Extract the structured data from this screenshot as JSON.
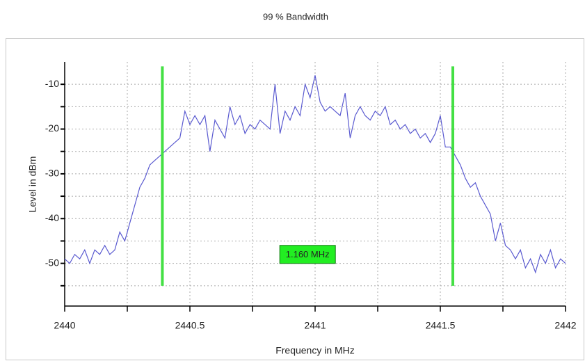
{
  "chart_data": {
    "type": "line",
    "title": "99 % Bandwidth",
    "x_label": "Frequency in MHz",
    "y_label": "Level in dBm",
    "xlim": [
      2440,
      2442
    ],
    "ylim": [
      -60,
      -5
    ],
    "xticks": [
      2440,
      2440.5,
      2441,
      2441.5,
      2442
    ],
    "x_minor_ticks": [
      2440.25,
      2440.75,
      2441.25,
      2441.75
    ],
    "yticks": [
      -10,
      -20,
      -30,
      -40,
      -50
    ],
    "y_minor_ticks": [
      -15,
      -25,
      -35,
      -45,
      -55
    ],
    "grid": true,
    "series": [
      {
        "color": "#5a5ad0",
        "x": [
          2440,
          2440.02,
          2440.04,
          2440.06,
          2440.08,
          2440.1,
          2440.12,
          2440.14,
          2440.16,
          2440.18,
          2440.2,
          2440.22,
          2440.24,
          2440.26,
          2440.28,
          2440.3,
          2440.32,
          2440.34,
          2440.36,
          2440.38,
          2440.4,
          2440.42,
          2440.44,
          2440.46,
          2440.48,
          2440.5,
          2440.52,
          2440.54,
          2440.56,
          2440.58,
          2440.6,
          2440.62,
          2440.64,
          2440.66,
          2440.68,
          2440.7,
          2440.72,
          2440.74,
          2440.76,
          2440.78,
          2440.8,
          2440.82,
          2440.84,
          2440.86,
          2440.88,
          2440.9,
          2440.92,
          2440.94,
          2440.96,
          2440.98,
          2441,
          2441.02,
          2441.04,
          2441.06,
          2441.08,
          2441.1,
          2441.12,
          2441.14,
          2441.16,
          2441.18,
          2441.2,
          2441.22,
          2441.24,
          2441.26,
          2441.28,
          2441.3,
          2441.32,
          2441.34,
          2441.36,
          2441.38,
          2441.4,
          2441.42,
          2441.44,
          2441.46,
          2441.48,
          2441.5,
          2441.52,
          2441.54,
          2441.56,
          2441.58,
          2441.6,
          2441.62,
          2441.64,
          2441.66,
          2441.68,
          2441.7,
          2441.72,
          2441.74,
          2441.76,
          2441.78,
          2441.8,
          2441.82,
          2441.84,
          2441.86,
          2441.88,
          2441.9,
          2441.92,
          2441.94,
          2441.96,
          2441.98,
          2442
        ],
        "values": [
          -49,
          -50,
          -48,
          -49,
          -47,
          -50,
          -47,
          -48,
          -46,
          -48,
          -47,
          -43,
          -45,
          -41,
          -37,
          -33,
          -31,
          -28,
          -27,
          -26,
          -25,
          -24,
          -23,
          -22,
          -16,
          -19,
          -17,
          -19,
          -17,
          -25,
          -18,
          -20,
          -22,
          -15,
          -19,
          -17,
          -21,
          -19,
          -20,
          -18,
          -19,
          -20,
          -10,
          -21,
          -16,
          -18,
          -15,
          -17,
          -10,
          -13,
          -8,
          -14,
          -16,
          -15,
          -16,
          -17,
          -12,
          -22,
          -17,
          -15,
          -17,
          -18,
          -16,
          -17,
          -15,
          -19,
          -18,
          -20,
          -19,
          -21,
          -20,
          -22,
          -21,
          -23,
          -21,
          -17,
          -24,
          -24,
          -26,
          -28,
          -31,
          -33,
          -32,
          -35,
          -37,
          -39,
          -45,
          -41,
          -46,
          -47,
          -49,
          -47,
          -51,
          -49,
          -52,
          -48,
          -50,
          -47,
          -51,
          -49,
          -50
        ]
      }
    ],
    "markers": [
      {
        "x": 2440.39,
        "color": "#44e044"
      },
      {
        "x": 2441.55,
        "color": "#44e044"
      }
    ],
    "marker_range": [
      -55,
      -6
    ],
    "annotation": {
      "text": "1.160 MHz",
      "x": 2440.97,
      "y": -48,
      "color": "#22ee22"
    }
  }
}
